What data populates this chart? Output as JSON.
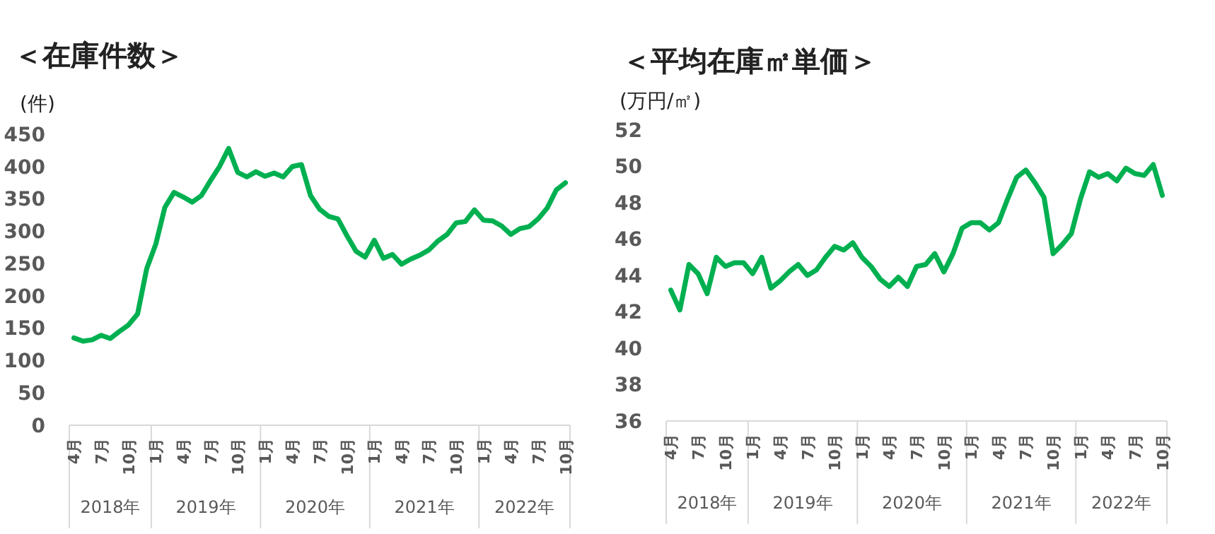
{
  "chart_data": [
    {
      "type": "line",
      "title": "＜在庫件数＞",
      "ylabel": "(件)",
      "x": [
        "2018-04",
        "2018-05",
        "2018-06",
        "2018-07",
        "2018-08",
        "2018-09",
        "2018-10",
        "2018-11",
        "2018-12",
        "2019-01",
        "2019-02",
        "2019-03",
        "2019-04",
        "2019-05",
        "2019-06",
        "2019-07",
        "2019-08",
        "2019-09",
        "2019-10",
        "2019-11",
        "2019-12",
        "2020-01",
        "2020-02",
        "2020-03",
        "2020-04",
        "2020-05",
        "2020-06",
        "2020-07",
        "2020-08",
        "2020-09",
        "2020-10",
        "2020-11",
        "2020-12",
        "2021-01",
        "2021-02",
        "2021-03",
        "2021-04",
        "2021-05",
        "2021-06",
        "2021-07",
        "2021-08",
        "2021-09",
        "2021-10",
        "2021-11",
        "2021-12",
        "2022-01",
        "2022-02",
        "2022-03",
        "2022-04",
        "2022-05",
        "2022-06",
        "2022-07",
        "2022-08",
        "2022-09",
        "2022-10"
      ],
      "series": [
        {
          "color": "#00b050",
          "values": [
            135,
            130,
            132,
            139,
            134,
            145,
            155,
            172,
            242,
            280,
            337,
            360,
            353,
            345,
            355,
            378,
            400,
            428,
            391,
            384,
            392,
            385,
            390,
            384,
            400,
            403,
            355,
            334,
            323,
            319,
            293,
            269,
            260,
            286,
            258,
            264,
            249,
            257,
            263,
            271,
            285,
            295,
            313,
            315,
            333,
            317,
            316,
            308,
            295,
            304,
            307,
            319,
            336,
            364,
            375
          ]
        }
      ],
      "xlim": [
        "2018-03-16",
        "2022-10-16"
      ],
      "xticks": [
        {
          "value": "2018-04",
          "label": "4月"
        },
        {
          "value": "2018-07",
          "label": "7月"
        },
        {
          "value": "2018-10",
          "label": "10月"
        },
        {
          "value": "2019-01",
          "label": "1月"
        },
        {
          "value": "2019-04",
          "label": "4月"
        },
        {
          "value": "2019-07",
          "label": "7月"
        },
        {
          "value": "2019-10",
          "label": "10月"
        },
        {
          "value": "2020-01",
          "label": "1月"
        },
        {
          "value": "2020-04",
          "label": "4月"
        },
        {
          "value": "2020-07",
          "label": "7月"
        },
        {
          "value": "2020-10",
          "label": "10月"
        },
        {
          "value": "2021-01",
          "label": "1月"
        },
        {
          "value": "2021-04",
          "label": "4月"
        },
        {
          "value": "2021-07",
          "label": "7月"
        },
        {
          "value": "2021-10",
          "label": "10月"
        },
        {
          "value": "2022-01",
          "label": "1月"
        },
        {
          "value": "2022-04",
          "label": "4月"
        },
        {
          "value": "2022-07",
          "label": "7月"
        },
        {
          "value": "2022-10",
          "label": "10月"
        }
      ],
      "ylim": [
        0,
        450
      ],
      "yticks": [
        0,
        50,
        100,
        150,
        200,
        250,
        300,
        350,
        400,
        450
      ],
      "annotations": [
        "2018年",
        "2019年",
        "2020年",
        "2021年",
        "2022年"
      ],
      "marker": "none",
      "line_style": "solid"
    },
    {
      "type": "line",
      "title": "＜平均在庫㎡単価＞",
      "ylabel": "(万円/㎡)",
      "x": [
        "2018-04",
        "2018-05",
        "2018-06",
        "2018-07",
        "2018-08",
        "2018-09",
        "2018-10",
        "2018-11",
        "2018-12",
        "2019-01",
        "2019-02",
        "2019-03",
        "2019-04",
        "2019-05",
        "2019-06",
        "2019-07",
        "2019-08",
        "2019-09",
        "2019-10",
        "2019-11",
        "2019-12",
        "2020-01",
        "2020-02",
        "2020-03",
        "2020-04",
        "2020-05",
        "2020-06",
        "2020-07",
        "2020-08",
        "2020-09",
        "2020-10",
        "2020-11",
        "2020-12",
        "2021-01",
        "2021-02",
        "2021-03",
        "2021-04",
        "2021-05",
        "2021-06",
        "2021-07",
        "2021-08",
        "2021-09",
        "2021-10",
        "2021-11",
        "2021-12",
        "2022-01",
        "2022-02",
        "2022-03",
        "2022-04",
        "2022-05",
        "2022-06",
        "2022-07",
        "2022-08",
        "2022-09",
        "2022-10"
      ],
      "series": [
        {
          "color": "#00b050",
          "values": [
            43.2,
            42.1,
            44.6,
            44.1,
            43.0,
            45.0,
            44.5,
            44.7,
            44.7,
            44.1,
            45.0,
            43.3,
            43.7,
            44.2,
            44.6,
            44.0,
            44.3,
            45.0,
            45.6,
            45.4,
            45.8,
            45.0,
            44.5,
            43.8,
            43.4,
            43.9,
            43.4,
            44.5,
            44.6,
            45.2,
            44.2,
            45.2,
            46.6,
            46.9,
            46.9,
            46.5,
            46.9,
            48.2,
            49.4,
            49.8,
            49.1,
            48.3,
            45.2,
            45.7,
            46.3,
            48.2,
            49.7,
            49.4,
            49.6,
            49.2,
            49.9,
            49.6,
            49.5,
            50.1,
            48.4
          ]
        }
      ],
      "xlim": [
        "2018-03-16",
        "2022-10-16"
      ],
      "xticks": [
        {
          "value": "2018-04",
          "label": "4月"
        },
        {
          "value": "2018-07",
          "label": "7月"
        },
        {
          "value": "2018-10",
          "label": "10月"
        },
        {
          "value": "2019-01",
          "label": "1月"
        },
        {
          "value": "2019-04",
          "label": "4月"
        },
        {
          "value": "2019-07",
          "label": "7月"
        },
        {
          "value": "2019-10",
          "label": "10月"
        },
        {
          "value": "2020-01",
          "label": "1月"
        },
        {
          "value": "2020-04",
          "label": "4月"
        },
        {
          "value": "2020-07",
          "label": "7月"
        },
        {
          "value": "2020-10",
          "label": "10月"
        },
        {
          "value": "2021-01",
          "label": "1月"
        },
        {
          "value": "2021-04",
          "label": "4月"
        },
        {
          "value": "2021-07",
          "label": "7月"
        },
        {
          "value": "2021-10",
          "label": "10月"
        },
        {
          "value": "2022-01",
          "label": "1月"
        },
        {
          "value": "2022-04",
          "label": "4月"
        },
        {
          "value": "2022-07",
          "label": "7月"
        },
        {
          "value": "2022-10",
          "label": "10月"
        }
      ],
      "ylim": [
        36,
        52
      ],
      "yticks": [
        36,
        38,
        40,
        42,
        44,
        46,
        48,
        50,
        52
      ],
      "annotations": [
        "2018年",
        "2019年",
        "2020年",
        "2021年",
        "2022年"
      ],
      "marker": "none",
      "line_style": "solid"
    }
  ]
}
